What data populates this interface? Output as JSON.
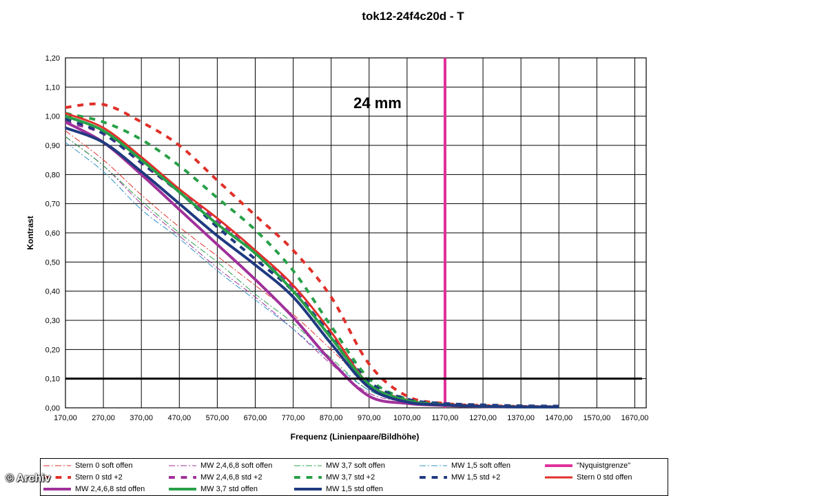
{
  "title": "tok12-24f4c20d - T",
  "watermark": "© Archiv",
  "chart_data": {
    "type": "line",
    "title": "tok12-24f4c20d - T",
    "annotation": "24 mm",
    "xlabel": "Frequenz (Linienpaare/Bildhöhe)",
    "ylabel": "Kontrast",
    "xlim": [
      170,
      1700
    ],
    "ylim": [
      0,
      1.2
    ],
    "x_ticks": [
      "170,00",
      "270,00",
      "370,00",
      "470,00",
      "570,00",
      "670,00",
      "770,00",
      "870,00",
      "970,00",
      "1070,00",
      "1170,00",
      "1270,00",
      "1370,00",
      "1470,00",
      "1570,00",
      "1670,00"
    ],
    "y_ticks": [
      "0,00",
      "0,10",
      "0,20",
      "0,30",
      "0,40",
      "0,50",
      "0,60",
      "0,70",
      "0,80",
      "0,90",
      "1,00",
      "1,10",
      "1,20"
    ],
    "grid": true,
    "reference_lines": [
      {
        "type": "horizontal",
        "y": 0.1,
        "color": "#000000"
      }
    ],
    "series": [
      {
        "name": "Stern 0 soft offen",
        "color": "#e0302a",
        "style": "dashdot",
        "width": 1,
        "points": [
          [
            170,
            0.95
          ],
          [
            270,
            0.85
          ],
          [
            370,
            0.73
          ],
          [
            470,
            0.62
          ],
          [
            570,
            0.52
          ],
          [
            670,
            0.42
          ],
          [
            770,
            0.32
          ],
          [
            870,
            0.2
          ],
          [
            970,
            0.08
          ],
          [
            1070,
            0.03
          ],
          [
            1170,
            0.01
          ],
          [
            1270,
            0.005
          ],
          [
            1370,
            0.003
          ],
          [
            1470,
            0.003
          ]
        ]
      },
      {
        "name": "MW 2,4,6,8 soft offen",
        "color": "#a0309a",
        "style": "dashdot",
        "width": 1,
        "points": [
          [
            170,
            0.93
          ],
          [
            270,
            0.83
          ],
          [
            370,
            0.7
          ],
          [
            470,
            0.59
          ],
          [
            570,
            0.48
          ],
          [
            670,
            0.38
          ],
          [
            770,
            0.27
          ],
          [
            870,
            0.15
          ],
          [
            970,
            0.05
          ],
          [
            1070,
            0.02
          ],
          [
            1170,
            0.01
          ],
          [
            1270,
            0.005
          ],
          [
            1370,
            0.003
          ],
          [
            1470,
            0.003
          ]
        ]
      },
      {
        "name": "MW 3,7 soft offen",
        "color": "#28a048",
        "style": "dashdot",
        "width": 1,
        "points": [
          [
            170,
            0.93
          ],
          [
            270,
            0.83
          ],
          [
            370,
            0.71
          ],
          [
            470,
            0.6
          ],
          [
            570,
            0.5
          ],
          [
            670,
            0.39
          ],
          [
            770,
            0.29
          ],
          [
            870,
            0.17
          ],
          [
            970,
            0.06
          ],
          [
            1070,
            0.02
          ],
          [
            1170,
            0.01
          ],
          [
            1270,
            0.005
          ],
          [
            1370,
            0.003
          ],
          [
            1470,
            0.003
          ]
        ]
      },
      {
        "name": "MW 1,5 soft offen",
        "color": "#3090c8",
        "style": "dashdot",
        "width": 1,
        "points": [
          [
            170,
            0.91
          ],
          [
            270,
            0.81
          ],
          [
            370,
            0.68
          ],
          [
            470,
            0.58
          ],
          [
            570,
            0.47
          ],
          [
            670,
            0.37
          ],
          [
            770,
            0.27
          ],
          [
            870,
            0.16
          ],
          [
            970,
            0.06
          ],
          [
            1070,
            0.02
          ],
          [
            1170,
            0.01
          ],
          [
            1270,
            0.005
          ],
          [
            1370,
            0.003
          ],
          [
            1470,
            0.003
          ]
        ]
      },
      {
        "name": "\"Nyquistgrenze\"",
        "color": "#e0309a",
        "style": "solid",
        "width": 4,
        "points": [
          [
            1170,
            0
          ],
          [
            1170,
            1.2
          ]
        ]
      },
      {
        "name": "Stern 0 std +2",
        "color": "#e0302a",
        "style": "dash",
        "width": 4,
        "points": [
          [
            170,
            1.03
          ],
          [
            270,
            1.04
          ],
          [
            370,
            0.98
          ],
          [
            470,
            0.9
          ],
          [
            570,
            0.78
          ],
          [
            670,
            0.66
          ],
          [
            770,
            0.54
          ],
          [
            870,
            0.38
          ],
          [
            970,
            0.15
          ],
          [
            1070,
            0.04
          ],
          [
            1170,
            0.015
          ],
          [
            1270,
            0.008
          ],
          [
            1370,
            0.005
          ],
          [
            1470,
            0.004
          ]
        ]
      },
      {
        "name": "MW 2,4,6,8 std +2",
        "color": "#a0309a",
        "style": "dash",
        "width": 4,
        "points": [
          [
            170,
            0.98
          ],
          [
            270,
            0.94
          ],
          [
            370,
            0.84
          ],
          [
            470,
            0.74
          ],
          [
            570,
            0.64
          ],
          [
            670,
            0.53
          ],
          [
            770,
            0.41
          ],
          [
            870,
            0.24
          ],
          [
            970,
            0.08
          ],
          [
            1070,
            0.025
          ],
          [
            1170,
            0.012
          ],
          [
            1270,
            0.006
          ],
          [
            1370,
            0.004
          ],
          [
            1470,
            0.003
          ]
        ]
      },
      {
        "name": "MW 3,7 std +2",
        "color": "#28a048",
        "style": "dash",
        "width": 4,
        "points": [
          [
            170,
            1.01
          ],
          [
            270,
            0.98
          ],
          [
            370,
            0.92
          ],
          [
            470,
            0.83
          ],
          [
            570,
            0.72
          ],
          [
            670,
            0.61
          ],
          [
            770,
            0.47
          ],
          [
            870,
            0.28
          ],
          [
            970,
            0.1
          ],
          [
            1070,
            0.03
          ],
          [
            1170,
            0.012
          ],
          [
            1270,
            0.006
          ],
          [
            1370,
            0.004
          ],
          [
            1470,
            0.003
          ]
        ]
      },
      {
        "name": "MW 1,5 std +2",
        "color": "#203a80",
        "style": "dash",
        "width": 4,
        "points": [
          [
            170,
            0.99
          ],
          [
            270,
            0.94
          ],
          [
            370,
            0.84
          ],
          [
            470,
            0.74
          ],
          [
            570,
            0.62
          ],
          [
            670,
            0.51
          ],
          [
            770,
            0.4
          ],
          [
            870,
            0.25
          ],
          [
            970,
            0.09
          ],
          [
            1070,
            0.03
          ],
          [
            1170,
            0.015
          ],
          [
            1270,
            0.01
          ],
          [
            1370,
            0.007
          ],
          [
            1470,
            0.006
          ]
        ]
      },
      {
        "name": "Stern 0 std offen",
        "color": "#e0302a",
        "style": "solid",
        "width": 3,
        "points": [
          [
            170,
            1.01
          ],
          [
            270,
            0.96
          ],
          [
            370,
            0.86
          ],
          [
            470,
            0.75
          ],
          [
            570,
            0.65
          ],
          [
            670,
            0.54
          ],
          [
            770,
            0.42
          ],
          [
            870,
            0.26
          ],
          [
            970,
            0.08
          ],
          [
            1070,
            0.025
          ],
          [
            1170,
            0.01
          ],
          [
            1270,
            0.005
          ],
          [
            1370,
            0.003
          ],
          [
            1470,
            0.003
          ]
        ]
      },
      {
        "name": "MW 2,4,6,8 std offen",
        "color": "#a0309a",
        "style": "solid",
        "width": 4,
        "points": [
          [
            170,
            0.98
          ],
          [
            270,
            0.91
          ],
          [
            370,
            0.8
          ],
          [
            470,
            0.68
          ],
          [
            570,
            0.56
          ],
          [
            670,
            0.44
          ],
          [
            770,
            0.31
          ],
          [
            870,
            0.16
          ],
          [
            970,
            0.04
          ],
          [
            1070,
            0.015
          ],
          [
            1170,
            0.008
          ],
          [
            1270,
            0.004
          ],
          [
            1370,
            0.003
          ],
          [
            1470,
            0.003
          ]
        ]
      },
      {
        "name": "MW 3,7 std offen",
        "color": "#28a048",
        "style": "solid",
        "width": 4,
        "points": [
          [
            170,
            1.0
          ],
          [
            270,
            0.95
          ],
          [
            370,
            0.85
          ],
          [
            470,
            0.74
          ],
          [
            570,
            0.63
          ],
          [
            670,
            0.53
          ],
          [
            770,
            0.4
          ],
          [
            870,
            0.24
          ],
          [
            970,
            0.08
          ],
          [
            1070,
            0.025
          ],
          [
            1170,
            0.01
          ],
          [
            1270,
            0.005
          ],
          [
            1370,
            0.003
          ],
          [
            1470,
            0.003
          ]
        ]
      },
      {
        "name": "MW 1,5 std offen",
        "color": "#203a80",
        "style": "solid",
        "width": 4,
        "points": [
          [
            170,
            0.96
          ],
          [
            270,
            0.91
          ],
          [
            370,
            0.81
          ],
          [
            470,
            0.7
          ],
          [
            570,
            0.59
          ],
          [
            670,
            0.49
          ],
          [
            770,
            0.38
          ],
          [
            870,
            0.22
          ],
          [
            970,
            0.07
          ],
          [
            1070,
            0.02
          ],
          [
            1170,
            0.01
          ],
          [
            1270,
            0.005
          ],
          [
            1370,
            0.003
          ],
          [
            1470,
            0.003
          ]
        ]
      }
    ],
    "legend_order": [
      "Stern 0 soft offen",
      "MW 2,4,6,8 soft offen",
      "MW 3,7 soft offen",
      "MW 1,5 soft offen",
      "\"Nyquistgrenze\"",
      "Stern 0 std +2",
      "MW 2,4,6,8 std +2",
      "MW 3,7 std +2",
      "MW 1,5 std +2",
      "Stern 0 std offen",
      "MW 2,4,6,8 std offen",
      "MW 3,7 std offen",
      "MW 1,5 std offen"
    ],
    "legend_placement": "bottom"
  }
}
